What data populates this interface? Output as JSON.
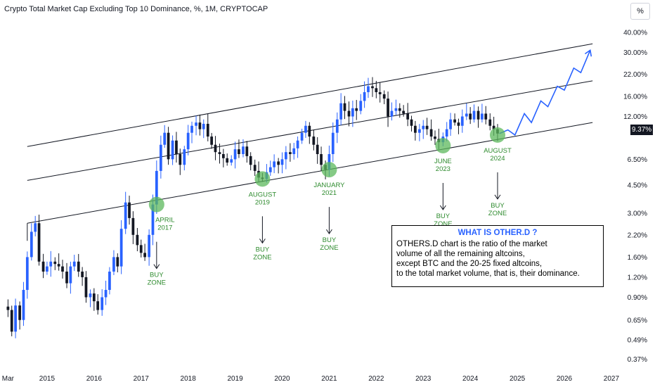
{
  "header": {
    "title": "Crypto Total Market Cap Excluding Top 10 Dominance, %, 1M, CRYPTOCAP",
    "scale_button": "%",
    "last_price": "9.37%"
  },
  "info_box": {
    "heading": "WHAT IS OTHER.D ?",
    "lines": [
      "OTHERS.D chart is the ratio of the market",
      "volume of all the remaining altcoins,",
      "except BTC and the 20-25 fixed altcoins,",
      "to the total market volume, that is, their dominance."
    ]
  },
  "colors": {
    "up": "#2962ff",
    "down": "#131722",
    "circle": "#5cb85c",
    "annotation_text": "#2e8b2e",
    "projection": "#2962ff"
  },
  "chart_data": {
    "type": "candlestick",
    "title": "Crypto Total Market Cap Excluding Top 10 Dominance, %, 1M, CRYPTOCAP",
    "y_scale": "log",
    "ylim": [
      0.33,
      48
    ],
    "y_ticks": [
      "40.00%",
      "30.00%",
      "22.00%",
      "16.00%",
      "12.00%",
      "6.50%",
      "4.50%",
      "3.00%",
      "2.20%",
      "1.60%",
      "1.20%",
      "0.90%",
      "0.65%",
      "0.49%",
      "0.37%"
    ],
    "y_tick_values": [
      40,
      30,
      22,
      16,
      12,
      6.5,
      4.5,
      3,
      2.2,
      1.6,
      1.2,
      0.9,
      0.65,
      0.49,
      0.37
    ],
    "x_ticks": [
      "Mar",
      "2015",
      "2016",
      "2017",
      "2018",
      "2019",
      "2020",
      "2021",
      "2022",
      "2023",
      "2024",
      "2025",
      "2026",
      "2027"
    ],
    "x_tick_values": [
      2014.17,
      2015,
      2016,
      2017,
      2018,
      2019,
      2020,
      2021,
      2022,
      2023,
      2024,
      2025,
      2026,
      2027
    ],
    "xlim": [
      2014.0,
      2027.3
    ],
    "last_value": 9.37,
    "path": [
      [
        2014.17,
        0.75
      ],
      [
        2014.25,
        0.55
      ],
      [
        2014.33,
        0.8
      ],
      [
        2014.42,
        0.65
      ],
      [
        2014.5,
        1.0
      ],
      [
        2014.58,
        1.6
      ],
      [
        2014.67,
        2.3
      ],
      [
        2014.75,
        2.6
      ],
      [
        2014.83,
        1.5
      ],
      [
        2014.92,
        1.3
      ],
      [
        2015.0,
        1.4
      ],
      [
        2015.08,
        1.5
      ],
      [
        2015.17,
        1.45
      ],
      [
        2015.25,
        1.4
      ],
      [
        2015.33,
        1.3
      ],
      [
        2015.42,
        1.1
      ],
      [
        2015.5,
        1.4
      ],
      [
        2015.58,
        1.5
      ],
      [
        2015.67,
        1.3
      ],
      [
        2015.75,
        1.2
      ],
      [
        2015.83,
        0.9
      ],
      [
        2015.92,
        0.95
      ],
      [
        2016.0,
        0.85
      ],
      [
        2016.08,
        0.75
      ],
      [
        2016.17,
        0.9
      ],
      [
        2016.25,
        1.0
      ],
      [
        2016.33,
        1.3
      ],
      [
        2016.42,
        1.6
      ],
      [
        2016.5,
        1.4
      ],
      [
        2016.58,
        2.4
      ],
      [
        2016.67,
        3.5
      ],
      [
        2016.75,
        2.8
      ],
      [
        2016.83,
        2.2
      ],
      [
        2016.92,
        1.9
      ],
      [
        2017.0,
        1.7
      ],
      [
        2017.08,
        1.6
      ],
      [
        2017.17,
        2.2
      ],
      [
        2017.25,
        3.4
      ],
      [
        2017.33,
        5.5
      ],
      [
        2017.42,
        8.0
      ],
      [
        2017.5,
        9.5
      ],
      [
        2017.58,
        6.5
      ],
      [
        2017.67,
        8.5
      ],
      [
        2017.75,
        7.0
      ],
      [
        2017.83,
        6.0
      ],
      [
        2017.92,
        7.5
      ],
      [
        2018.0,
        9.5
      ],
      [
        2018.08,
        10.5
      ],
      [
        2018.17,
        11.0
      ],
      [
        2018.25,
        10.0
      ],
      [
        2018.33,
        10.8
      ],
      [
        2018.42,
        9.0
      ],
      [
        2018.5,
        8.0
      ],
      [
        2018.58,
        7.2
      ],
      [
        2018.67,
        7.0
      ],
      [
        2018.75,
        6.6
      ],
      [
        2018.83,
        6.2
      ],
      [
        2018.92,
        6.5
      ],
      [
        2019.0,
        7.5
      ],
      [
        2019.08,
        7.0
      ],
      [
        2019.17,
        7.8
      ],
      [
        2019.25,
        6.8
      ],
      [
        2019.33,
        6.0
      ],
      [
        2019.42,
        5.5
      ],
      [
        2019.5,
        5.0
      ],
      [
        2019.58,
        4.9
      ],
      [
        2019.67,
        5.4
      ],
      [
        2019.75,
        5.8
      ],
      [
        2019.83,
        6.3
      ],
      [
        2019.92,
        6.0
      ],
      [
        2020.0,
        6.5
      ],
      [
        2020.08,
        7.2
      ],
      [
        2020.17,
        7.0
      ],
      [
        2020.25,
        7.6
      ],
      [
        2020.33,
        8.5
      ],
      [
        2020.42,
        9.5
      ],
      [
        2020.5,
        10.5
      ],
      [
        2020.58,
        9.0
      ],
      [
        2020.67,
        8.0
      ],
      [
        2020.75,
        7.0
      ],
      [
        2020.83,
        6.0
      ],
      [
        2020.92,
        5.6
      ],
      [
        2021.0,
        7.0
      ],
      [
        2021.08,
        9.5
      ],
      [
        2021.17,
        11.5
      ],
      [
        2021.25,
        14.5
      ],
      [
        2021.33,
        13.0
      ],
      [
        2021.42,
        12.0
      ],
      [
        2021.5,
        13.5
      ],
      [
        2021.58,
        13.0
      ],
      [
        2021.67,
        15.0
      ],
      [
        2021.75,
        17.0
      ],
      [
        2021.83,
        18.5
      ],
      [
        2021.92,
        18.0
      ],
      [
        2022.0,
        17.0
      ],
      [
        2022.08,
        16.5
      ],
      [
        2022.17,
        15.5
      ],
      [
        2022.25,
        12.0
      ],
      [
        2022.33,
        13.0
      ],
      [
        2022.42,
        13.5
      ],
      [
        2022.5,
        13.0
      ],
      [
        2022.58,
        12.5
      ],
      [
        2022.67,
        11.5
      ],
      [
        2022.75,
        10.5
      ],
      [
        2022.83,
        9.5
      ],
      [
        2022.92,
        10.0
      ],
      [
        2023.0,
        10.5
      ],
      [
        2023.08,
        10.0
      ],
      [
        2023.17,
        9.0
      ],
      [
        2023.25,
        8.7
      ],
      [
        2023.33,
        8.3
      ],
      [
        2023.42,
        9.0
      ],
      [
        2023.5,
        10.0
      ],
      [
        2023.58,
        11.5
      ],
      [
        2023.67,
        11.0
      ],
      [
        2023.75,
        10.5
      ],
      [
        2023.83,
        12.0
      ],
      [
        2023.92,
        12.5
      ],
      [
        2024.0,
        11.5
      ],
      [
        2024.08,
        13.0
      ],
      [
        2024.17,
        11.5
      ],
      [
        2024.25,
        12.5
      ],
      [
        2024.33,
        11.5
      ],
      [
        2024.42,
        10.5
      ],
      [
        2024.5,
        10.0
      ],
      [
        2024.58,
        9.4
      ]
    ],
    "channel_lines": [
      {
        "name": "upper",
        "from": [
          2014.58,
          7.8
        ],
        "to": [
          2026.6,
          34.0
        ]
      },
      {
        "name": "middle",
        "from": [
          2014.58,
          4.8
        ],
        "to": [
          2026.6,
          20.0
        ]
      },
      {
        "name": "lower",
        "from": [
          2014.58,
          2.6
        ],
        "to": [
          2026.6,
          11.0
        ]
      }
    ],
    "projection": [
      [
        2024.62,
        9.4
      ],
      [
        2024.8,
        9.9
      ],
      [
        2024.95,
        9.2
      ],
      [
        2025.15,
        12.5
      ],
      [
        2025.3,
        11.0
      ],
      [
        2025.5,
        15.0
      ],
      [
        2025.65,
        13.8
      ],
      [
        2025.85,
        18.5
      ],
      [
        2026.0,
        17.5
      ],
      [
        2026.2,
        24.0
      ],
      [
        2026.35,
        22.5
      ],
      [
        2026.55,
        31.0
      ]
    ],
    "annotations": [
      {
        "label": [
          "APRIL",
          "2017"
        ],
        "buy_zone": [
          "BUY",
          "ZONE"
        ],
        "x": 2017.33,
        "y": 3.4,
        "text_below": true
      },
      {
        "label": [
          "AUGUST",
          "2019"
        ],
        "buy_zone": [
          "BUY",
          "ZONE"
        ],
        "x": 2019.58,
        "y": 4.9,
        "text_below": true
      },
      {
        "label": [
          "JANUARY",
          "2021"
        ],
        "buy_zone": [
          "BUY",
          "ZONE"
        ],
        "x": 2021.0,
        "y": 5.6,
        "text_below": true
      },
      {
        "label": [
          "JUNE",
          "2023"
        ],
        "buy_zone": [
          "BUY",
          "ZONE"
        ],
        "x": 2023.42,
        "y": 7.9,
        "text_below": true
      },
      {
        "label": [
          "AUGUST",
          "2024"
        ],
        "buy_zone": [
          "BUY",
          "ZONE"
        ],
        "x": 2024.58,
        "y": 9.2,
        "text_below": true
      }
    ]
  }
}
